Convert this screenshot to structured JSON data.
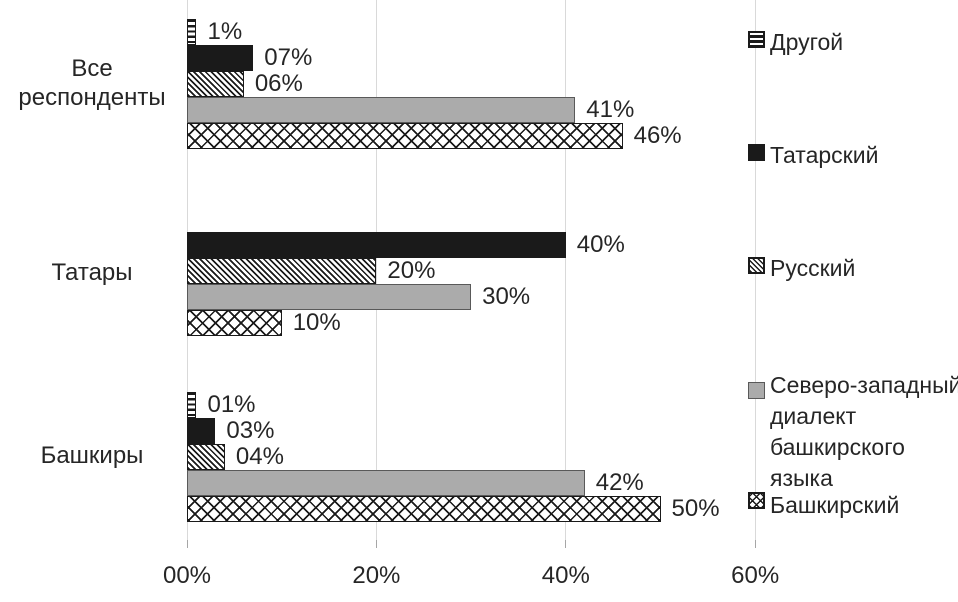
{
  "chart_data": {
    "type": "bar",
    "orientation": "horizontal",
    "title": "",
    "categories": [
      "Все\nреспонденты",
      "Татары",
      "Башкиры"
    ],
    "x_axis": {
      "tick_labels": [
        "00%",
        "20%",
        "40%",
        "60%"
      ],
      "tick_values": [
        0,
        20,
        40,
        60
      ],
      "range": [
        0,
        60
      ],
      "unit": "percent",
      "grid": true
    },
    "legend_position": "right",
    "series": [
      {
        "name": "Другой",
        "legend_label": "Другой",
        "pattern": "horizontal-stripes",
        "values": [
          1,
          0,
          1
        ],
        "data_labels": [
          "1%",
          "",
          "01%"
        ]
      },
      {
        "name": "Татарский",
        "legend_label": "Татарский",
        "pattern": "solid-black",
        "values": [
          7,
          40,
          3
        ],
        "data_labels": [
          "07%",
          "40%",
          "03%"
        ]
      },
      {
        "name": "Русский",
        "legend_label": "Русский",
        "pattern": "diagonal-stripes",
        "values": [
          6,
          20,
          4
        ],
        "data_labels": [
          "06%",
          "20%",
          "04%"
        ]
      },
      {
        "name": "Северо-западный диалект башкирского языка",
        "legend_label": "Северо-западный\nдиалект\nбашкирского\nязыка",
        "pattern": "solid-gray",
        "values": [
          41,
          30,
          42
        ],
        "data_labels": [
          "41%",
          "30%",
          "42%"
        ]
      },
      {
        "name": "Башкирский",
        "legend_label": "Башкирский",
        "pattern": "crosshatch",
        "values": [
          46,
          10,
          50
        ],
        "data_labels": [
          "46%",
          "10%",
          "50%"
        ]
      }
    ],
    "colors": {
      "bar_black": "#1a1a1a",
      "bar_gray": "#ababab",
      "bar_gray_border": "#595959",
      "pattern_background": "#ffffff",
      "gridline": "#d9d9d9",
      "text": "#262626"
    }
  }
}
